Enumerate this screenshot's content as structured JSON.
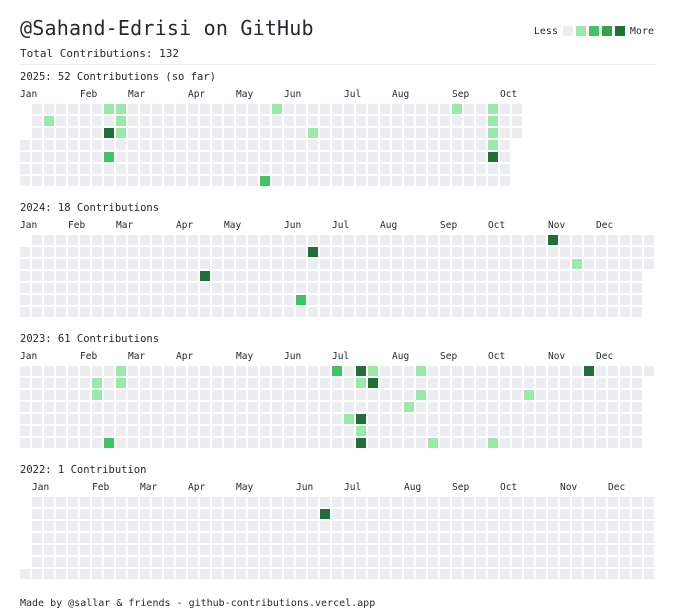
{
  "header": {
    "title": "@Sahand-Edrisi on GitHub",
    "total_label": "Total Contributions: 132"
  },
  "legend": {
    "less_label": "Less",
    "more_label": "More",
    "colors": [
      "#ebedf0",
      "#9be9a8",
      "#40c463",
      "#30a14e",
      "#216e39"
    ]
  },
  "years": [
    {
      "title": "2025: 52 Contributions (so far)",
      "months": [
        {
          "label": "Jan",
          "week": 0
        },
        {
          "label": "Feb",
          "week": 5
        },
        {
          "label": "Mar",
          "week": 9
        },
        {
          "label": "Apr",
          "week": 14
        },
        {
          "label": "May",
          "week": 18
        },
        {
          "label": "Jun",
          "week": 22
        },
        {
          "label": "Jul",
          "week": 27
        },
        {
          "label": "Aug",
          "week": 31
        },
        {
          "label": "Sep",
          "week": 36
        },
        {
          "label": "Oct",
          "week": 40
        }
      ],
      "first_weekday": 3,
      "days": 287,
      "contributions": [
        {
          "week": 7,
          "day": 0,
          "level": 1
        },
        {
          "week": 8,
          "day": 0,
          "level": 1
        },
        {
          "week": 21,
          "day": 0,
          "level": 1
        },
        {
          "week": 36,
          "day": 0,
          "level": 1
        },
        {
          "week": 39,
          "day": 0,
          "level": 1
        },
        {
          "week": 2,
          "day": 1,
          "level": 1
        },
        {
          "week": 8,
          "day": 1,
          "level": 1
        },
        {
          "week": 39,
          "day": 1,
          "level": 1
        },
        {
          "week": 7,
          "day": 2,
          "level": 4
        },
        {
          "week": 8,
          "day": 2,
          "level": 1
        },
        {
          "week": 24,
          "day": 2,
          "level": 1
        },
        {
          "week": 39,
          "day": 2,
          "level": 1
        },
        {
          "week": 42,
          "day": 2,
          "level": 4
        },
        {
          "week": 39,
          "day": 3,
          "level": 1
        },
        {
          "week": 42,
          "day": 3,
          "level": 2
        },
        {
          "week": 7,
          "day": 4,
          "level": 2
        },
        {
          "week": 39,
          "day": 4,
          "level": 4
        },
        {
          "week": 20,
          "day": 6,
          "level": 2
        }
      ]
    },
    {
      "title": "2024: 18 Contributions",
      "months": [
        {
          "label": "Jan",
          "week": 0
        },
        {
          "label": "Feb",
          "week": 4
        },
        {
          "label": "Mar",
          "week": 8
        },
        {
          "label": "Apr",
          "week": 13
        },
        {
          "label": "May",
          "week": 17
        },
        {
          "label": "Jun",
          "week": 22
        },
        {
          "label": "Jul",
          "week": 26
        },
        {
          "label": "Aug",
          "week": 30
        },
        {
          "label": "Sep",
          "week": 35
        },
        {
          "label": "Oct",
          "week": 39
        },
        {
          "label": "Nov",
          "week": 44
        },
        {
          "label": "Dec",
          "week": 48
        }
      ],
      "first_weekday": 1,
      "days": 366,
      "contributions": [
        {
          "week": 44,
          "day": 0,
          "level": 4
        },
        {
          "week": 24,
          "day": 1,
          "level": 4
        },
        {
          "week": 46,
          "day": 2,
          "level": 1
        },
        {
          "week": 15,
          "day": 3,
          "level": 4
        },
        {
          "week": 23,
          "day": 5,
          "level": 2
        }
      ]
    },
    {
      "title": "2023: 61 Contributions",
      "months": [
        {
          "label": "Jan",
          "week": 0
        },
        {
          "label": "Feb",
          "week": 5
        },
        {
          "label": "Mar",
          "week": 9
        },
        {
          "label": "Apr",
          "week": 13
        },
        {
          "label": "May",
          "week": 18
        },
        {
          "label": "Jun",
          "week": 22
        },
        {
          "label": "Jul",
          "week": 26
        },
        {
          "label": "Aug",
          "week": 31
        },
        {
          "label": "Sep",
          "week": 35
        },
        {
          "label": "Oct",
          "week": 39
        },
        {
          "label": "Nov",
          "week": 44
        },
        {
          "label": "Dec",
          "week": 48
        }
      ],
      "first_weekday": 0,
      "days": 365,
      "contributions": [
        {
          "week": 8,
          "day": 0,
          "level": 1
        },
        {
          "week": 26,
          "day": 0,
          "level": 2
        },
        {
          "week": 28,
          "day": 0,
          "level": 4
        },
        {
          "week": 29,
          "day": 0,
          "level": 1
        },
        {
          "week": 33,
          "day": 0,
          "level": 1
        },
        {
          "week": 47,
          "day": 0,
          "level": 4
        },
        {
          "week": 6,
          "day": 1,
          "level": 1
        },
        {
          "week": 8,
          "day": 1,
          "level": 1
        },
        {
          "week": 28,
          "day": 1,
          "level": 1
        },
        {
          "week": 29,
          "day": 1,
          "level": 4
        },
        {
          "week": 6,
          "day": 2,
          "level": 1
        },
        {
          "week": 33,
          "day": 2,
          "level": 1
        },
        {
          "week": 42,
          "day": 2,
          "level": 1
        },
        {
          "week": 32,
          "day": 3,
          "level": 1
        },
        {
          "week": 27,
          "day": 4,
          "level": 1
        },
        {
          "week": 28,
          "day": 4,
          "level": 4
        },
        {
          "week": 28,
          "day": 5,
          "level": 1
        },
        {
          "week": 7,
          "day": 6,
          "level": 2
        },
        {
          "week": 28,
          "day": 6,
          "level": 4
        },
        {
          "week": 34,
          "day": 6,
          "level": 1
        },
        {
          "week": 39,
          "day": 6,
          "level": 1
        }
      ]
    },
    {
      "title": "2022: 1 Contribution",
      "months": [
        {
          "label": "Jan",
          "week": 1
        },
        {
          "label": "Feb",
          "week": 6
        },
        {
          "label": "Mar",
          "week": 10
        },
        {
          "label": "Apr",
          "week": 14
        },
        {
          "label": "May",
          "week": 18
        },
        {
          "label": "Jun",
          "week": 23
        },
        {
          "label": "Jul",
          "week": 27
        },
        {
          "label": "Aug",
          "week": 32
        },
        {
          "label": "Sep",
          "week": 36
        },
        {
          "label": "Oct",
          "week": 40
        },
        {
          "label": "Nov",
          "week": 45
        },
        {
          "label": "Dec",
          "week": 49
        }
      ],
      "first_weekday": 6,
      "days": 365,
      "contributions": [
        {
          "week": 25,
          "day": 1,
          "level": 4
        }
      ]
    }
  ],
  "footer": {
    "text": "Made by @sallar & friends - github-contributions.vercel.app"
  }
}
